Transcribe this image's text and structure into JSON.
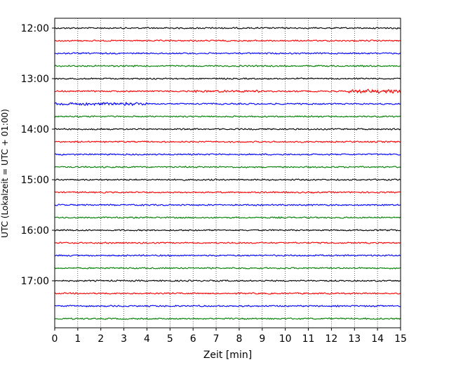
{
  "chart_data": {
    "type": "line",
    "title": "",
    "xlabel": "Zeit  [min]",
    "ylabel": "UTC (Lokalzeit = UTC + 01:00)",
    "xlim": [
      0,
      15
    ],
    "xticks": [
      "0",
      "1",
      "2",
      "3",
      "4",
      "5",
      "6",
      "7",
      "8",
      "9",
      "10",
      "11",
      "12",
      "13",
      "14",
      "15"
    ],
    "yticks": [
      "12:00",
      "13:00",
      "14:00",
      "15:00",
      "16:00",
      "17:00"
    ],
    "grid": "vertical-dotted",
    "row_interval_minutes": 15,
    "trace_colors": [
      "#000000",
      "#ff0000",
      "#0000ff",
      "#008000"
    ],
    "traces": [
      {
        "start": "12:00",
        "color": "#000000"
      },
      {
        "start": "12:15",
        "color": "#ff0000"
      },
      {
        "start": "12:30",
        "color": "#0000ff"
      },
      {
        "start": "12:45",
        "color": "#008000"
      },
      {
        "start": "13:00",
        "color": "#000000"
      },
      {
        "start": "13:15",
        "color": "#ff0000"
      },
      {
        "start": "13:30",
        "color": "#0000ff"
      },
      {
        "start": "13:45",
        "color": "#008000"
      },
      {
        "start": "14:00",
        "color": "#000000"
      },
      {
        "start": "14:15",
        "color": "#ff0000"
      },
      {
        "start": "14:30",
        "color": "#0000ff"
      },
      {
        "start": "14:45",
        "color": "#008000"
      },
      {
        "start": "15:00",
        "color": "#000000"
      },
      {
        "start": "15:15",
        "color": "#ff0000"
      },
      {
        "start": "15:30",
        "color": "#0000ff"
      },
      {
        "start": "15:45",
        "color": "#008000"
      },
      {
        "start": "16:00",
        "color": "#000000"
      },
      {
        "start": "16:15",
        "color": "#ff0000"
      },
      {
        "start": "16:30",
        "color": "#0000ff"
      },
      {
        "start": "16:45",
        "color": "#008000"
      },
      {
        "start": "17:00",
        "color": "#000000"
      },
      {
        "start": "17:15",
        "color": "#ff0000"
      },
      {
        "start": "17:30",
        "color": "#0000ff"
      },
      {
        "start": "17:45",
        "color": "#008000"
      }
    ]
  }
}
